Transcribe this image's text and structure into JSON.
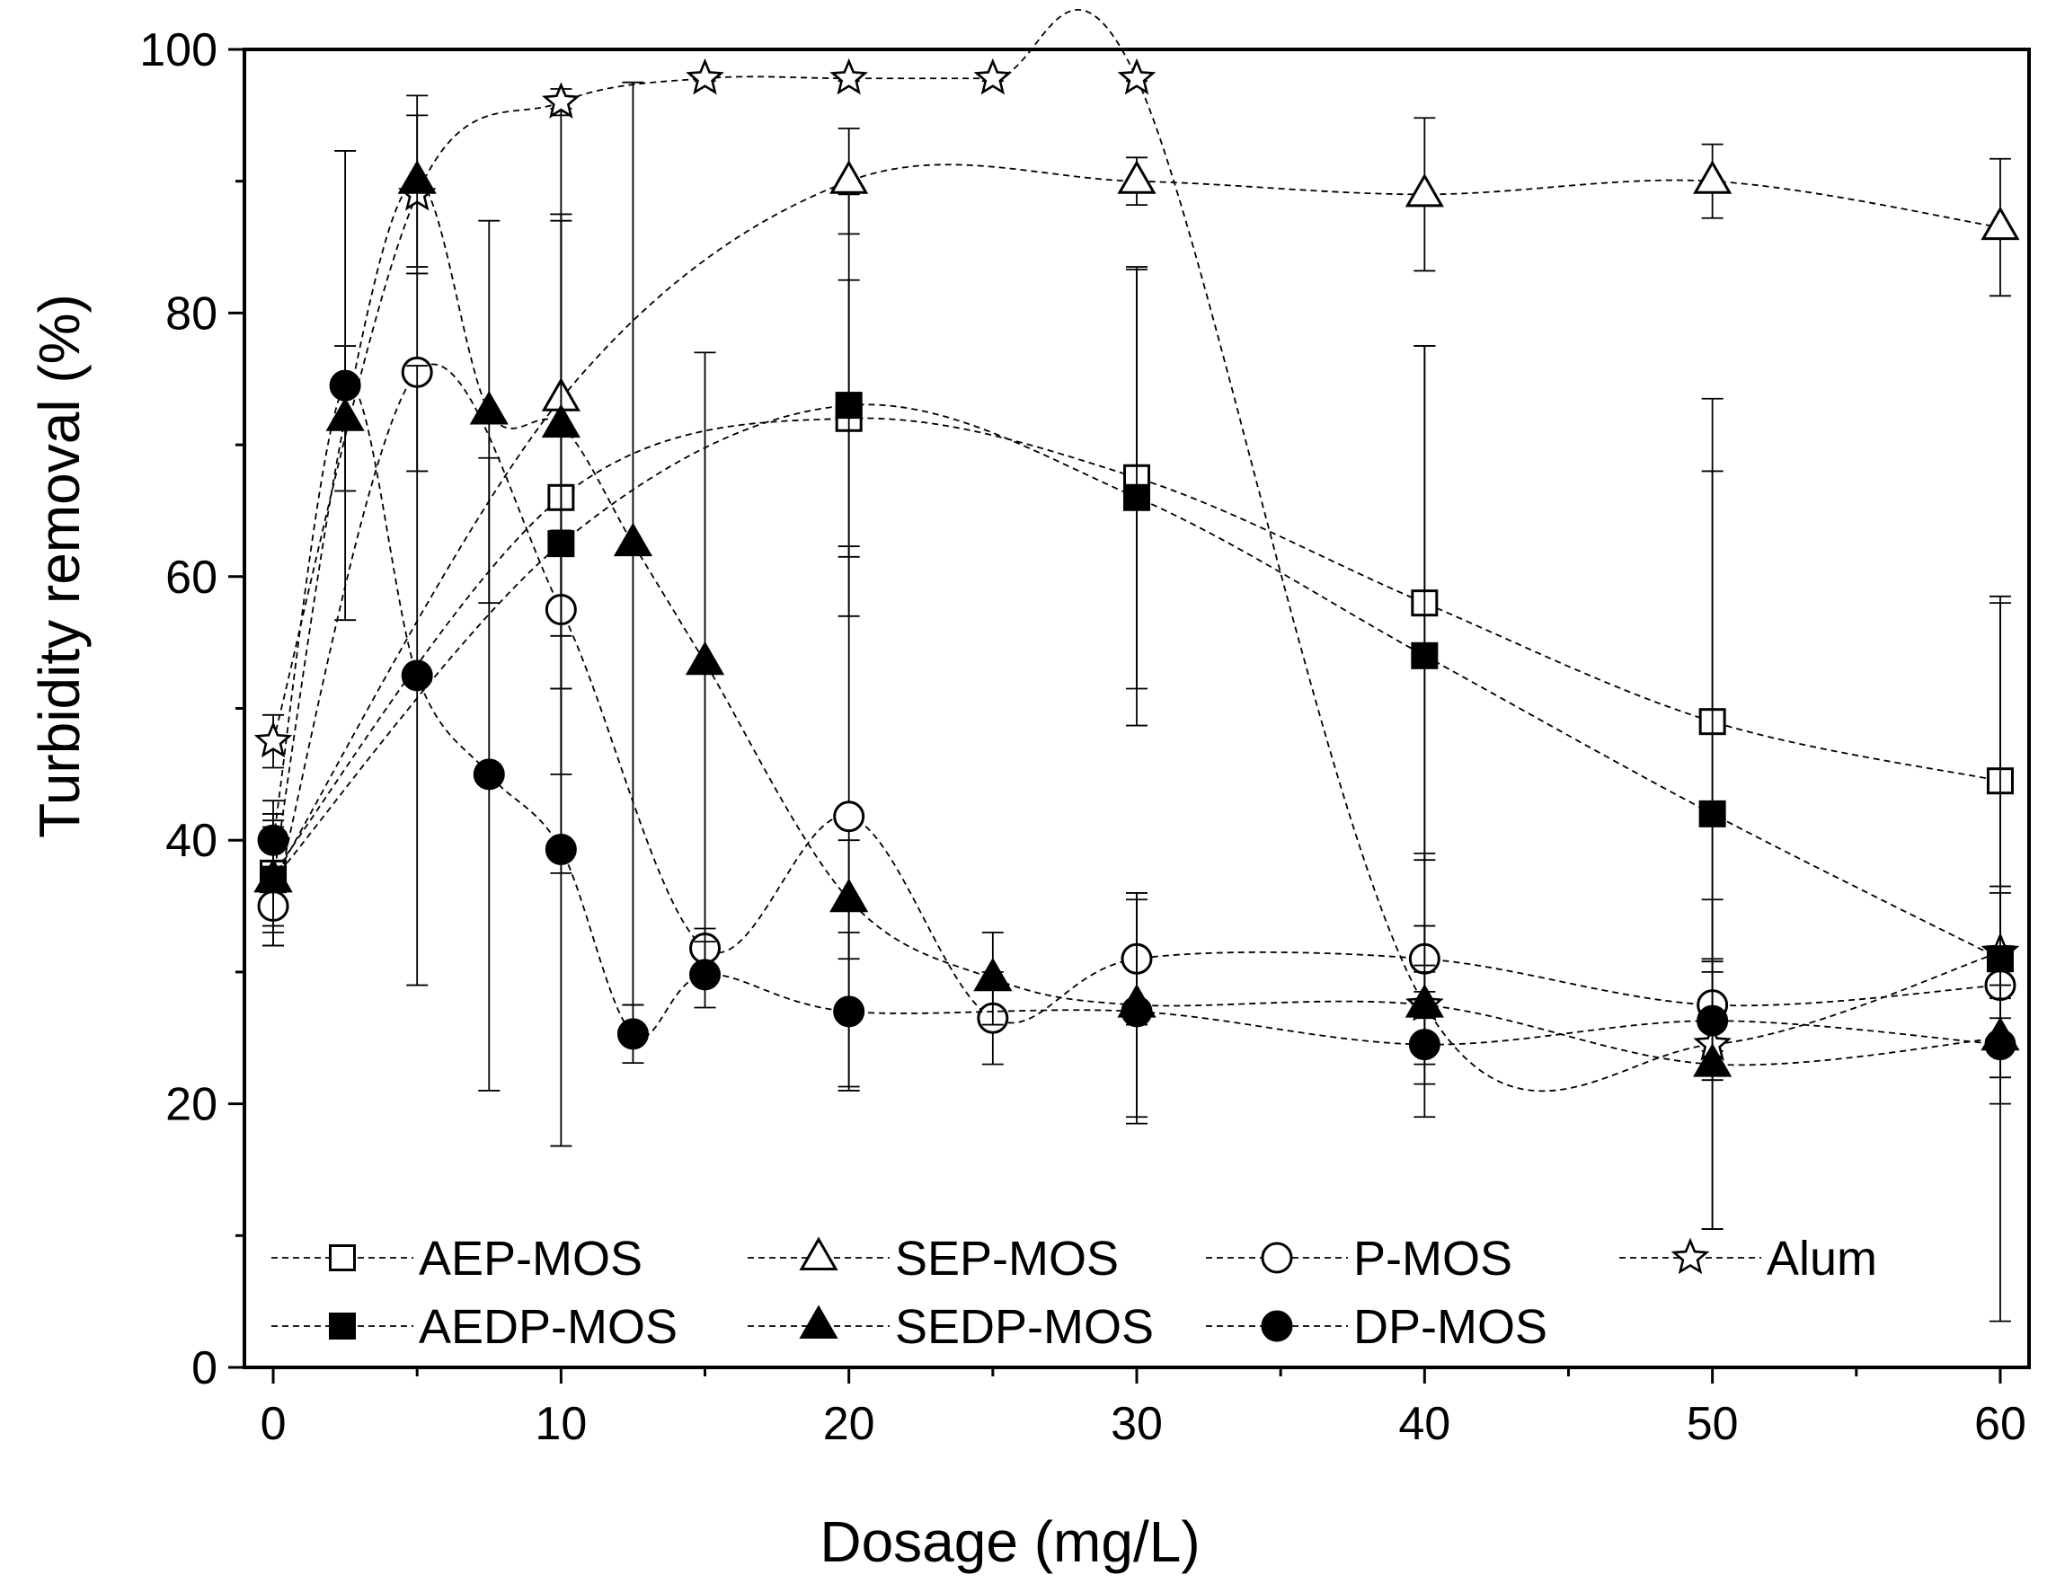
{
  "chart_data": {
    "type": "line",
    "xlabel": "Dosage (mg/L)",
    "ylabel": "Turbidity removal (%)",
    "xlim": [
      -1,
      61
    ],
    "ylim": [
      0,
      100
    ],
    "x_ticks": [
      0,
      10,
      20,
      30,
      40,
      50,
      60
    ],
    "y_ticks": [
      0,
      20,
      40,
      60,
      80,
      100
    ],
    "grid": false,
    "legend_position": "bottom",
    "line_style": "dashed",
    "series": [
      {
        "name": "AEP-MOS",
        "marker": "square",
        "filled": false,
        "points": [
          {
            "x": 0,
            "y": 37.5,
            "err": 4
          },
          {
            "x": 10,
            "y": 66,
            "err": 21
          },
          {
            "x": 20,
            "y": 72,
            "err": 10.5
          },
          {
            "x": 30,
            "y": 67.5,
            "err": 16
          },
          {
            "x": 40,
            "y": 58,
            "err": 19.5
          },
          {
            "x": 50,
            "y": 49,
            "err": 19
          },
          {
            "x": 60,
            "y": 44.5,
            "err": 13.5
          }
        ]
      },
      {
        "name": "SEP-MOS",
        "marker": "triangle",
        "filled": false,
        "points": [
          {
            "x": 0,
            "y": 37,
            "err": 5
          },
          {
            "x": 10,
            "y": 73.5,
            "err": 22
          },
          {
            "x": 20,
            "y": 90,
            "err": 4
          },
          {
            "x": 30,
            "y": 90,
            "err": 1.8
          },
          {
            "x": 40,
            "y": 89,
            "err": 5.8
          },
          {
            "x": 50,
            "y": 90,
            "err": 2.8
          },
          {
            "x": 60,
            "y": 86.5,
            "err": 5.2
          }
        ]
      },
      {
        "name": "P-MOS",
        "marker": "circle",
        "filled": false,
        "points": [
          {
            "x": 0,
            "y": 35,
            "err": 3
          },
          {
            "x": 5,
            "y": 75.5,
            "err": 7.5
          },
          {
            "x": 10,
            "y": 57.5,
            "err": 6
          },
          {
            "x": 15,
            "y": 31.8,
            "err": 1.5
          },
          {
            "x": 20,
            "y": 41.8,
            "err": 20.5
          },
          {
            "x": 25,
            "y": 26.5,
            "err": 3.5
          },
          {
            "x": 30,
            "y": 31,
            "err": 5
          },
          {
            "x": 40,
            "y": 31,
            "err": 8
          },
          {
            "x": 50,
            "y": 27.5,
            "err": 3.5
          },
          {
            "x": 60,
            "y": 29,
            "err": 7
          }
        ]
      },
      {
        "name": "Alum",
        "marker": "star",
        "filled": false,
        "points": [
          {
            "x": 0,
            "y": 47.5,
            "err": 2
          },
          {
            "x": 5,
            "y": 89,
            "err": 6
          },
          {
            "x": 10,
            "y": 96,
            "err": 1
          },
          {
            "x": 15,
            "y": 97.8,
            "err": 0.2
          },
          {
            "x": 20,
            "y": 97.8,
            "err": 0.2
          },
          {
            "x": 25,
            "y": 97.8,
            "err": 0.2
          },
          {
            "x": 30,
            "y": 97.8,
            "err": 0.2
          },
          {
            "x": 40,
            "y": 27.5,
            "err": 1
          },
          {
            "x": 50,
            "y": 24.5,
            "err": 1
          },
          {
            "x": 60,
            "y": 31.5,
            "err": 5
          }
        ]
      },
      {
        "name": "AEDP-MOS",
        "marker": "square",
        "filled": true,
        "points": [
          {
            "x": 0,
            "y": 37,
            "err": 4
          },
          {
            "x": 10,
            "y": 62.5,
            "err": 25
          },
          {
            "x": 20,
            "y": 73,
            "err": 16
          },
          {
            "x": 30,
            "y": 66,
            "err": 17.3
          },
          {
            "x": 40,
            "y": 54,
            "err": 23.5
          },
          {
            "x": 50,
            "y": 42,
            "err": 31.5
          },
          {
            "x": 60,
            "y": 31,
            "err": 27.5
          }
        ]
      },
      {
        "name": "SEDP-MOS",
        "marker": "triangle",
        "filled": true,
        "points": [
          {
            "x": 0,
            "y": 37,
            "err": 5
          },
          {
            "x": 2.5,
            "y": 72,
            "err": 5.5
          },
          {
            "x": 5,
            "y": 90,
            "err": 6.5
          },
          {
            "x": 7.5,
            "y": 72.5,
            "err": 14.5
          },
          {
            "x": 10,
            "y": 71.5,
            "err": 16
          },
          {
            "x": 12.5,
            "y": 62.5,
            "err": 35
          },
          {
            "x": 15,
            "y": 53.5,
            "err": 23.5
          },
          {
            "x": 20,
            "y": 35.5,
            "err": 4.5
          },
          {
            "x": 25,
            "y": 29.5,
            "err": 3.5
          },
          {
            "x": 30,
            "y": 27.5,
            "err": 8.5
          },
          {
            "x": 40,
            "y": 27.5,
            "err": 6
          },
          {
            "x": 50,
            "y": 23,
            "err": 12.5
          },
          {
            "x": 60,
            "y": 25,
            "err": 3
          }
        ]
      },
      {
        "name": "DP-MOS",
        "marker": "circle",
        "filled": true,
        "points": [
          {
            "x": 0,
            "y": 40,
            "err": 3
          },
          {
            "x": 2.5,
            "y": 74.5,
            "err": 17.8
          },
          {
            "x": 5,
            "y": 52.5,
            "err": 23.5
          },
          {
            "x": 7.5,
            "y": 45,
            "err": 24
          },
          {
            "x": 10,
            "y": 39.3,
            "err": 22.5
          },
          {
            "x": 12.5,
            "y": 25.3,
            "err": 2.2
          },
          {
            "x": 15,
            "y": 29.8,
            "err": 2.5
          },
          {
            "x": 20,
            "y": 27,
            "err": 6
          },
          {
            "x": 30,
            "y": 27,
            "err": 8.5
          },
          {
            "x": 40,
            "y": 24.5,
            "err": 5.5
          },
          {
            "x": 50,
            "y": 26.3,
            "err": 4.5
          },
          {
            "x": 60,
            "y": 24.5,
            "err": 4.5
          }
        ]
      }
    ]
  }
}
